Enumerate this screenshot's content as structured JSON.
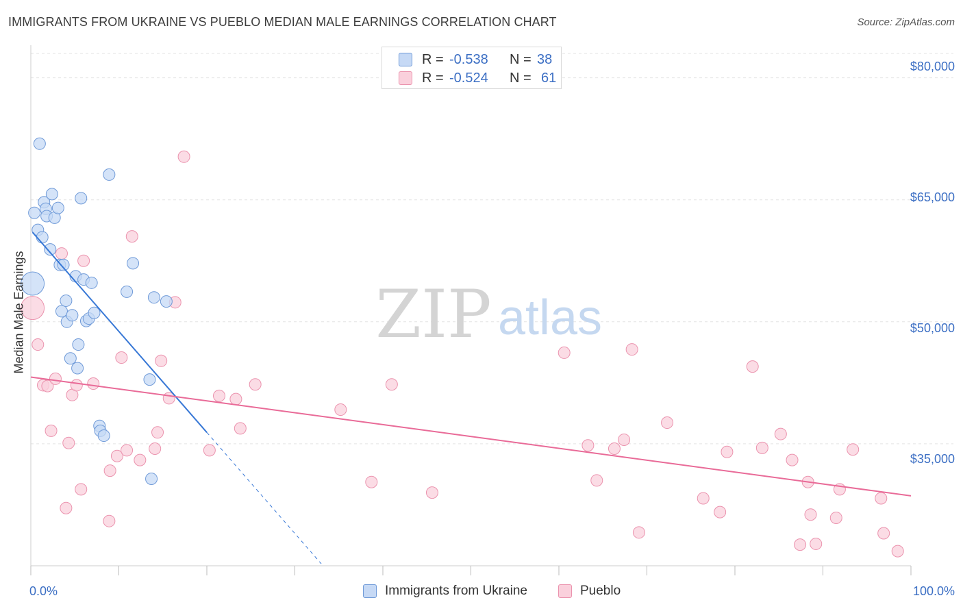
{
  "title": "IMMIGRANTS FROM UKRAINE VS PUEBLO MEDIAN MALE EARNINGS CORRELATION CHART",
  "source": "Source: ZipAtlas.com",
  "watermark": {
    "zip": "ZIP",
    "atlas": "atlas"
  },
  "legend": {
    "rows": [
      {
        "r_label": "R =",
        "r_value": "-0.538",
        "n_label": "N =",
        "n_value": "38"
      },
      {
        "r_label": "R =",
        "r_value": "-0.524",
        "n_label": "N =",
        "n_value": "61"
      }
    ]
  },
  "colors": {
    "ukraine_fill": "#c6d9f5",
    "ukraine_stroke": "#6f9ad8",
    "ukraine_line": "#3878d6",
    "pueblo_fill": "#fad0dc",
    "pueblo_stroke": "#eb93ae",
    "pueblo_line": "#e96b98",
    "axis_label": "#3c6fc4",
    "grid": "#e3e3e3"
  },
  "chart_data": {
    "type": "scatter",
    "title": "IMMIGRANTS FROM UKRAINE VS PUEBLO MEDIAN MALE EARNINGS CORRELATION CHART",
    "xlabel": "",
    "ylabel": "Median Male Earnings",
    "xlim": [
      0,
      100
    ],
    "ylim": [
      20000,
      83000
    ],
    "x_tick_labels": [
      "0.0%",
      "100.0%"
    ],
    "y_ticks": [
      35000,
      50000,
      65000,
      80000
    ],
    "y_tick_labels": [
      "$35,000",
      "$50,000",
      "$65,000",
      "$80,000"
    ],
    "grid": true,
    "series": [
      {
        "name": "Immigrants from Ukraine",
        "R": -0.538,
        "N": 38,
        "trend": {
          "x0": 0.2,
          "y0": 61000,
          "x1": 20,
          "y1": 36400,
          "dash_to_x": 33
        },
        "points": [
          [
            0.2,
            54700,
            "big"
          ],
          [
            0.4,
            63400
          ],
          [
            0.8,
            61300
          ],
          [
            1.0,
            71900
          ],
          [
            1.3,
            60400
          ],
          [
            1.5,
            64700
          ],
          [
            1.7,
            63900
          ],
          [
            1.8,
            63000
          ],
          [
            2.2,
            58900
          ],
          [
            2.4,
            65700
          ],
          [
            2.7,
            62800
          ],
          [
            3.1,
            64000
          ],
          [
            3.3,
            57000
          ],
          [
            3.5,
            51300
          ],
          [
            3.7,
            57000
          ],
          [
            4.0,
            52600
          ],
          [
            4.1,
            50000
          ],
          [
            4.5,
            45500
          ],
          [
            4.7,
            50800
          ],
          [
            5.1,
            55600
          ],
          [
            5.3,
            44300
          ],
          [
            5.4,
            47200
          ],
          [
            5.7,
            65200
          ],
          [
            6.0,
            55200
          ],
          [
            6.3,
            50100
          ],
          [
            6.6,
            50400
          ],
          [
            6.9,
            54800
          ],
          [
            7.2,
            51100
          ],
          [
            7.8,
            37200
          ],
          [
            7.9,
            36600
          ],
          [
            8.3,
            36000
          ],
          [
            8.9,
            68100
          ],
          [
            10.9,
            53700
          ],
          [
            11.6,
            57200
          ],
          [
            13.5,
            42900
          ],
          [
            13.7,
            30700
          ],
          [
            14.0,
            53000
          ],
          [
            15.4,
            52500
          ]
        ]
      },
      {
        "name": "Pueblo",
        "R": -0.524,
        "N": 61,
        "trend": {
          "x0": 0,
          "y0": 43200,
          "x1": 100,
          "y1": 28600
        },
        "points": [
          [
            0.2,
            51700,
            "big"
          ],
          [
            0.8,
            47200
          ],
          [
            1.4,
            42200
          ],
          [
            1.9,
            42100
          ],
          [
            2.3,
            36600
          ],
          [
            2.8,
            43000
          ],
          [
            3.5,
            58400
          ],
          [
            4.0,
            27100
          ],
          [
            4.3,
            35100
          ],
          [
            4.7,
            41000
          ],
          [
            5.2,
            42200
          ],
          [
            5.7,
            29400
          ],
          [
            6.0,
            57500
          ],
          [
            7.1,
            42400
          ],
          [
            8.9,
            25500
          ],
          [
            9.0,
            31700
          ],
          [
            9.8,
            33500
          ],
          [
            10.3,
            45600
          ],
          [
            10.9,
            34200
          ],
          [
            11.5,
            60500
          ],
          [
            12.4,
            33000
          ],
          [
            14.1,
            34400
          ],
          [
            14.4,
            36400
          ],
          [
            14.8,
            45200
          ],
          [
            15.7,
            40600
          ],
          [
            16.4,
            52400
          ],
          [
            17.4,
            70300
          ],
          [
            20.3,
            34200
          ],
          [
            21.4,
            40900
          ],
          [
            23.3,
            40500
          ],
          [
            23.8,
            36900
          ],
          [
            25.5,
            42300
          ],
          [
            35.2,
            39200
          ],
          [
            38.7,
            30300
          ],
          [
            41.0,
            42300
          ],
          [
            45.6,
            29000
          ],
          [
            60.6,
            46200
          ],
          [
            63.3,
            34800
          ],
          [
            64.3,
            30500
          ],
          [
            66.3,
            34400
          ],
          [
            67.4,
            35500
          ],
          [
            68.3,
            46600
          ],
          [
            69.1,
            24100
          ],
          [
            72.3,
            37600
          ],
          [
            76.4,
            28300
          ],
          [
            78.3,
            26600
          ],
          [
            79.1,
            34000
          ],
          [
            82.0,
            44500
          ],
          [
            83.1,
            34500
          ],
          [
            85.2,
            36200
          ],
          [
            86.5,
            33000
          ],
          [
            87.4,
            22600
          ],
          [
            88.3,
            30300
          ],
          [
            88.6,
            26300
          ],
          [
            89.2,
            22700
          ],
          [
            91.5,
            25900
          ],
          [
            91.9,
            29400
          ],
          [
            93.4,
            34300
          ],
          [
            96.6,
            28300
          ],
          [
            96.9,
            24000
          ],
          [
            98.5,
            21800
          ]
        ]
      }
    ]
  },
  "bottom_legend": [
    {
      "label": "Immigrants from Ukraine"
    },
    {
      "label": "Pueblo"
    }
  ]
}
